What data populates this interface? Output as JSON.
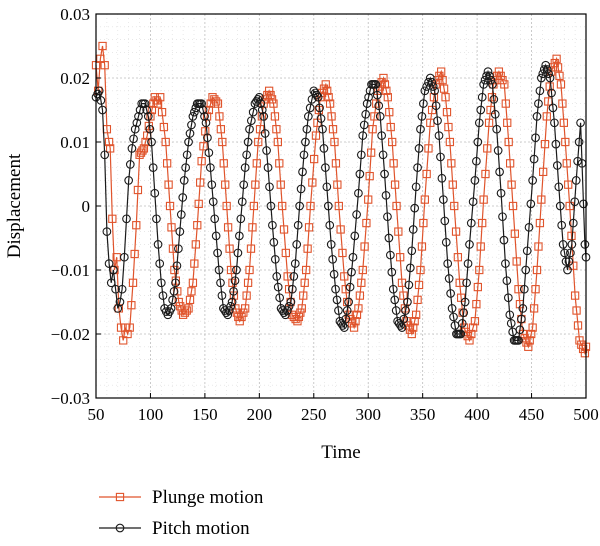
{
  "chart_data": {
    "type": "line",
    "xlabel": "Time",
    "ylabel": "Displacement",
    "xlim": [
      50,
      500
    ],
    "ylim": [
      -0.03,
      0.03
    ],
    "x_ticks": [
      50,
      100,
      150,
      200,
      250,
      300,
      350,
      400,
      450,
      500
    ],
    "x_tick_labels": [
      "50",
      "100",
      "150",
      "200",
      "250",
      "300",
      "350",
      "400",
      "450",
      "500"
    ],
    "y_ticks": [
      0.03,
      0.02,
      0.01,
      0,
      -0.01,
      -0.02,
      -0.03
    ],
    "y_tick_labels": [
      "0.03",
      "0.02",
      "0.01",
      "0",
      "−0.01",
      "−0.02",
      "−0.03"
    ],
    "grid": true,
    "legend_position": "bottom-left, below plot",
    "series": [
      {
        "name": "Plunge motion",
        "color": "#e0542c",
        "marker": "square",
        "points": [
          [
            50,
            0.022
          ],
          [
            52,
            0.018
          ],
          [
            54,
            0.023
          ],
          [
            56,
            0.025
          ],
          [
            58,
            0.022
          ],
          [
            60,
            0.012
          ],
          [
            62,
            0.01
          ],
          [
            63,
            0.009
          ],
          [
            65,
            -0.002
          ],
          [
            67,
            -0.01
          ],
          [
            69,
            -0.008
          ],
          [
            71,
            -0.016
          ],
          [
            73,
            -0.019
          ],
          [
            75,
            -0.021
          ],
          [
            77,
            -0.019
          ],
          [
            79,
            -0.02
          ],
          [
            81,
            -0.019
          ],
          [
            84,
            -0.012
          ],
          [
            87,
            -0.003
          ],
          [
            90,
            0.008
          ],
          [
            94,
            0.009
          ],
          [
            97,
            0.011
          ],
          [
            100,
            0.014
          ],
          [
            104,
            0.017
          ],
          [
            107,
            0.016
          ],
          [
            109,
            0.017
          ],
          [
            114,
            0.01
          ],
          [
            118,
            0.0
          ],
          [
            122,
            -0.01
          ],
          [
            126,
            -0.015
          ],
          [
            130,
            -0.017
          ],
          [
            135,
            -0.016
          ],
          [
            139,
            -0.012
          ],
          [
            143,
            -0.003
          ],
          [
            147,
            0.007
          ],
          [
            152,
            0.014
          ],
          [
            157,
            0.017
          ],
          [
            162,
            0.016
          ],
          [
            166,
            0.01
          ],
          [
            170,
            0.0
          ],
          [
            174,
            -0.01
          ],
          [
            178,
            -0.016
          ],
          [
            182,
            -0.018
          ],
          [
            187,
            -0.016
          ],
          [
            191,
            -0.01
          ],
          [
            195,
            0.0
          ],
          [
            199,
            0.01
          ],
          [
            204,
            0.016
          ],
          [
            209,
            0.018
          ],
          [
            213,
            0.016
          ],
          [
            217,
            0.01
          ],
          [
            221,
            0.0
          ],
          [
            226,
            -0.011
          ],
          [
            230,
            -0.017
          ],
          [
            235,
            -0.018
          ],
          [
            239,
            -0.016
          ],
          [
            243,
            -0.01
          ],
          [
            247,
            0.0
          ],
          [
            252,
            0.011
          ],
          [
            256,
            0.017
          ],
          [
            261,
            0.019
          ],
          [
            265,
            0.016
          ],
          [
            269,
            0.01
          ],
          [
            273,
            0.0
          ],
          [
            278,
            -0.011
          ],
          [
            282,
            -0.017
          ],
          [
            287,
            -0.019
          ],
          [
            291,
            -0.016
          ],
          [
            295,
            -0.01
          ],
          [
            300,
            0.001
          ],
          [
            304,
            0.012
          ],
          [
            309,
            0.018
          ],
          [
            314,
            0.02
          ],
          [
            318,
            0.017
          ],
          [
            322,
            0.01
          ],
          [
            326,
            0.0
          ],
          [
            331,
            -0.012
          ],
          [
            335,
            -0.018
          ],
          [
            340,
            -0.02
          ],
          [
            344,
            -0.017
          ],
          [
            348,
            -0.01
          ],
          [
            352,
            0.001
          ],
          [
            357,
            0.013
          ],
          [
            362,
            0.019
          ],
          [
            367,
            0.021
          ],
          [
            371,
            0.017
          ],
          [
            375,
            0.01
          ],
          [
            379,
            0.0
          ],
          [
            384,
            -0.012
          ],
          [
            388,
            -0.019
          ],
          [
            393,
            -0.021
          ],
          [
            398,
            -0.018
          ],
          [
            402,
            -0.01
          ],
          [
            406,
            0.001
          ],
          [
            411,
            0.013
          ],
          [
            415,
            0.019
          ],
          [
            420,
            0.021
          ],
          [
            425,
            0.019
          ],
          [
            429,
            0.01
          ],
          [
            433,
            0.0
          ],
          [
            438,
            -0.013
          ],
          [
            442,
            -0.02
          ],
          [
            447,
            -0.022
          ],
          [
            451,
            -0.019
          ],
          [
            455,
            -0.01
          ],
          [
            459,
            0.001
          ],
          [
            464,
            0.014
          ],
          [
            468,
            0.021
          ],
          [
            473,
            0.023
          ],
          [
            477,
            0.019
          ],
          [
            481,
            0.01
          ],
          [
            485,
            0.0
          ],
          [
            490,
            -0.014
          ],
          [
            494,
            -0.021
          ],
          [
            499,
            -0.023
          ],
          [
            500,
            -0.022
          ]
        ]
      },
      {
        "name": "Pitch motion",
        "color": "#1a1a1a",
        "marker": "circle",
        "points": [
          [
            50,
            0.017
          ],
          [
            53,
            0.018
          ],
          [
            56,
            0.015
          ],
          [
            58,
            0.008
          ],
          [
            60,
            -0.004
          ],
          [
            62,
            -0.009
          ],
          [
            64,
            -0.012
          ],
          [
            66,
            -0.01
          ],
          [
            68,
            -0.013
          ],
          [
            70,
            -0.016
          ],
          [
            72,
            -0.015
          ],
          [
            74,
            -0.013
          ],
          [
            76,
            -0.008
          ],
          [
            78,
            -0.002
          ],
          [
            80,
            0.004
          ],
          [
            83,
            0.009
          ],
          [
            86,
            0.012
          ],
          [
            89,
            0.014
          ],
          [
            92,
            0.016
          ],
          [
            95,
            0.016
          ],
          [
            98,
            0.014
          ],
          [
            101,
            0.01
          ],
          [
            104,
            0.002
          ],
          [
            107,
            -0.006
          ],
          [
            110,
            -0.012
          ],
          [
            113,
            -0.016
          ],
          [
            116,
            -0.017
          ],
          [
            119,
            -0.016
          ],
          [
            123,
            -0.012
          ],
          [
            127,
            -0.004
          ],
          [
            131,
            0.004
          ],
          [
            135,
            0.01
          ],
          [
            139,
            0.014
          ],
          [
            143,
            0.016
          ],
          [
            147,
            0.016
          ],
          [
            151,
            0.013
          ],
          [
            155,
            0.006
          ],
          [
            159,
            -0.002
          ],
          [
            163,
            -0.01
          ],
          [
            167,
            -0.016
          ],
          [
            171,
            -0.017
          ],
          [
            175,
            -0.015
          ],
          [
            179,
            -0.01
          ],
          [
            183,
            -0.002
          ],
          [
            187,
            0.006
          ],
          [
            191,
            0.012
          ],
          [
            196,
            0.016
          ],
          [
            200,
            0.017
          ],
          [
            204,
            0.014
          ],
          [
            208,
            0.006
          ],
          [
            212,
            -0.003
          ],
          [
            216,
            -0.011
          ],
          [
            220,
            -0.016
          ],
          [
            224,
            -0.017
          ],
          [
            229,
            -0.015
          ],
          [
            233,
            -0.009
          ],
          [
            237,
            0.0
          ],
          [
            241,
            0.008
          ],
          [
            245,
            0.014
          ],
          [
            250,
            0.018
          ],
          [
            254,
            0.017
          ],
          [
            258,
            0.012
          ],
          [
            262,
            0.003
          ],
          [
            266,
            -0.006
          ],
          [
            270,
            -0.013
          ],
          [
            274,
            -0.018
          ],
          [
            278,
            -0.019
          ],
          [
            282,
            -0.015
          ],
          [
            286,
            -0.008
          ],
          [
            291,
            0.002
          ],
          [
            295,
            0.011
          ],
          [
            299,
            0.016
          ],
          [
            303,
            0.019
          ],
          [
            307,
            0.019
          ],
          [
            311,
            0.014
          ],
          [
            315,
            0.005
          ],
          [
            319,
            -0.005
          ],
          [
            323,
            -0.013
          ],
          [
            327,
            -0.018
          ],
          [
            331,
            -0.019
          ],
          [
            336,
            -0.015
          ],
          [
            340,
            -0.007
          ],
          [
            344,
            0.003
          ],
          [
            348,
            0.012
          ],
          [
            352,
            0.018
          ],
          [
            357,
            0.02
          ],
          [
            361,
            0.018
          ],
          [
            365,
            0.011
          ],
          [
            369,
            0.001
          ],
          [
            373,
            -0.009
          ],
          [
            377,
            -0.016
          ],
          [
            381,
            -0.02
          ],
          [
            385,
            -0.02
          ],
          [
            389,
            -0.015
          ],
          [
            393,
            -0.006
          ],
          [
            398,
            0.004
          ],
          [
            402,
            0.013
          ],
          [
            406,
            0.019
          ],
          [
            410,
            0.021
          ],
          [
            414,
            0.019
          ],
          [
            418,
            0.012
          ],
          [
            422,
            0.002
          ],
          [
            426,
            -0.009
          ],
          [
            430,
            -0.017
          ],
          [
            434,
            -0.021
          ],
          [
            438,
            -0.021
          ],
          [
            442,
            -0.016
          ],
          [
            446,
            -0.007
          ],
          [
            451,
            0.004
          ],
          [
            455,
            0.014
          ],
          [
            459,
            0.02
          ],
          [
            463,
            0.022
          ],
          [
            467,
            0.02
          ],
          [
            471,
            0.013
          ],
          [
            475,
            0.003
          ],
          [
            479,
            -0.006
          ],
          [
            483,
            -0.01
          ],
          [
            487,
            -0.006
          ],
          [
            491,
            0.004
          ],
          [
            495,
            0.013
          ],
          [
            499,
            -0.006
          ],
          [
            500,
            -0.008
          ]
        ]
      }
    ]
  }
}
